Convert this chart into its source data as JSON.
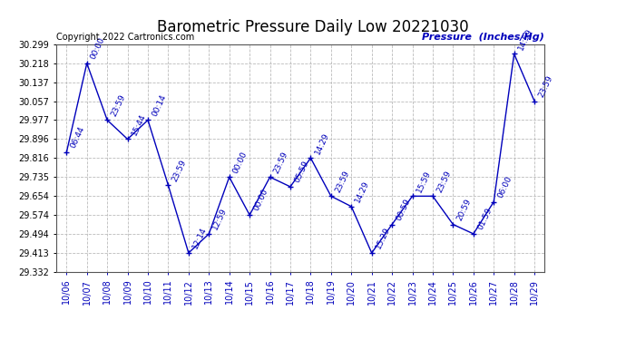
{
  "title": "Barometric Pressure Daily Low 20221030",
  "ylabel": "Pressure  (Inches/Hg)",
  "copyright": "Copyright 2022 Cartronics.com",
  "line_color": "#0000bb",
  "background_color": "#ffffff",
  "grid_color": "#bbbbbb",
  "x_labels": [
    "10/06",
    "10/07",
    "10/08",
    "10/09",
    "10/10",
    "10/11",
    "10/12",
    "10/13",
    "10/14",
    "10/15",
    "10/16",
    "10/17",
    "10/18",
    "10/19",
    "10/20",
    "10/21",
    "10/22",
    "10/23",
    "10/24",
    "10/25",
    "10/26",
    "10/27",
    "10/28",
    "10/29"
  ],
  "y_values": [
    29.84,
    30.218,
    29.977,
    29.896,
    29.977,
    29.7,
    29.413,
    29.494,
    29.735,
    29.574,
    29.735,
    29.694,
    29.816,
    29.654,
    29.61,
    29.413,
    29.534,
    29.654,
    29.654,
    29.534,
    29.494,
    29.63,
    30.258,
    30.057
  ],
  "time_labels": [
    "06:44",
    "00:00",
    "23:59",
    "15:44",
    "00:14",
    "23:59",
    "12:14",
    "12:59",
    "00:00",
    "00:00",
    "23:59",
    "05:59",
    "14:29",
    "23:59",
    "14:29",
    "15:29",
    "00:59",
    "15:59",
    "23:59",
    "20:59",
    "01:59",
    "06:00",
    "14:59",
    "23:59"
  ],
  "ylim_min": 29.332,
  "ylim_max": 30.299,
  "yticks": [
    29.332,
    29.413,
    29.494,
    29.574,
    29.654,
    29.735,
    29.816,
    29.896,
    29.977,
    30.057,
    30.137,
    30.218,
    30.299
  ],
  "title_fontsize": 12,
  "tick_fontsize": 7,
  "time_label_fontsize": 6.5,
  "copyright_fontsize": 7,
  "ylabel_fontsize": 8
}
